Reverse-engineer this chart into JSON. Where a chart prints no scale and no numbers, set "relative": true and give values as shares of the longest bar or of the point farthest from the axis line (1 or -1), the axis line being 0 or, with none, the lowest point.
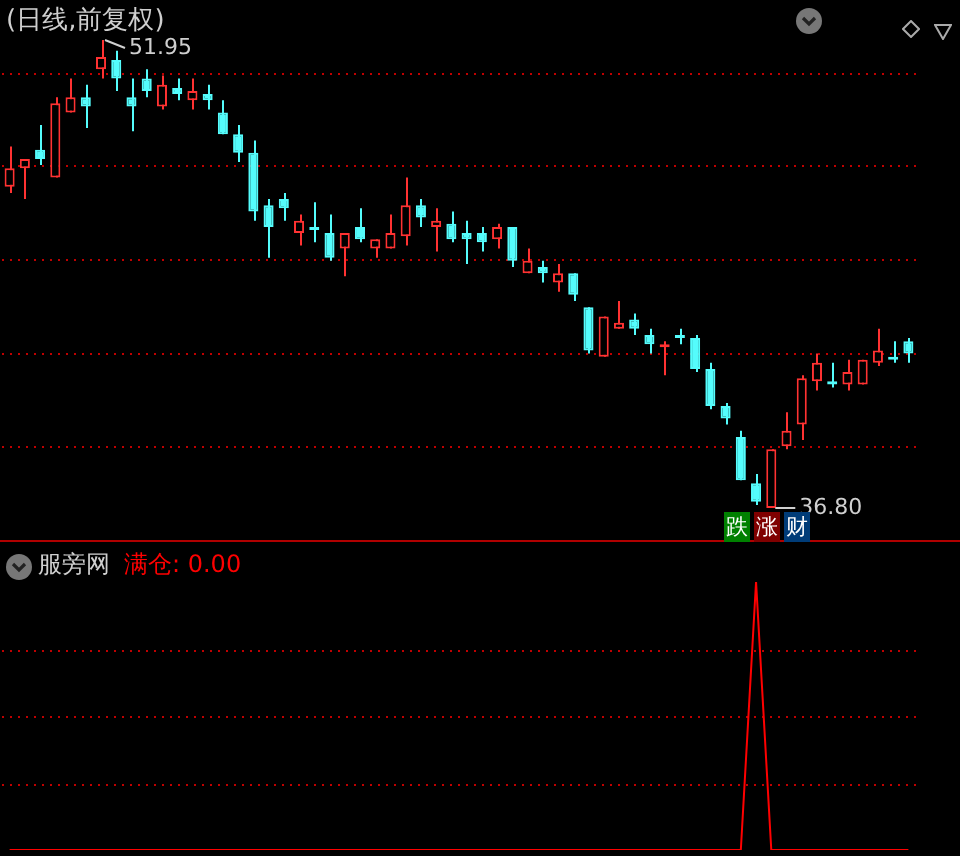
{
  "chart_data": [
    {
      "type": "candlestick",
      "title": "(日线,前复权)",
      "categories": [
        null,
        null,
        null,
        null,
        null,
        null,
        null,
        null,
        null,
        null,
        null,
        null,
        null,
        null,
        null,
        null,
        null,
        null,
        null,
        null,
        null,
        null,
        null,
        null,
        null,
        null,
        null,
        null,
        null,
        null,
        null,
        null,
        null,
        null,
        null,
        null,
        null,
        null,
        null,
        null,
        null,
        null,
        null,
        null,
        null,
        null,
        null,
        null,
        null,
        null,
        null,
        null,
        null,
        null,
        null,
        null,
        null,
        null,
        null,
        null
      ],
      "ohlc": [
        [
          47.2,
          48.5,
          47.0,
          47.8
        ],
        [
          47.8,
          48.1,
          46.8,
          48.1
        ],
        [
          48.4,
          49.2,
          47.9,
          48.1
        ],
        [
          47.5,
          50.1,
          47.5,
          49.9
        ],
        [
          49.6,
          50.7,
          49.6,
          50.1
        ],
        [
          50.1,
          50.5,
          49.1,
          49.8
        ],
        [
          51.0,
          51.95,
          50.7,
          51.4
        ],
        [
          51.3,
          51.6,
          50.3,
          50.7
        ],
        [
          50.1,
          50.7,
          49.0,
          49.8
        ],
        [
          50.7,
          51.0,
          50.1,
          50.3
        ],
        [
          49.8,
          50.8,
          49.7,
          50.5
        ],
        [
          50.4,
          50.7,
          50.0,
          50.2
        ],
        [
          50.0,
          50.7,
          49.7,
          50.3
        ],
        [
          50.2,
          50.5,
          49.7,
          50.0
        ],
        [
          49.6,
          50.0,
          48.9,
          48.9
        ],
        [
          48.9,
          49.2,
          48.0,
          48.3
        ],
        [
          48.3,
          48.7,
          46.1,
          46.4
        ],
        [
          46.6,
          46.8,
          44.9,
          45.9
        ],
        [
          46.8,
          47.0,
          46.1,
          46.5
        ],
        [
          45.7,
          46.3,
          45.3,
          46.1
        ],
        [
          45.9,
          46.7,
          45.4,
          45.8
        ],
        [
          45.7,
          46.3,
          44.8,
          44.9
        ],
        [
          45.2,
          45.7,
          44.3,
          45.7
        ],
        [
          45.9,
          46.5,
          45.4,
          45.5
        ],
        [
          45.2,
          45.5,
          44.9,
          45.5
        ],
        [
          45.2,
          46.3,
          45.2,
          45.7
        ],
        [
          45.6,
          47.5,
          45.3,
          46.6
        ],
        [
          46.6,
          46.8,
          45.9,
          46.2
        ],
        [
          45.9,
          46.5,
          45.1,
          46.1
        ],
        [
          46.0,
          46.4,
          45.4,
          45.5
        ],
        [
          45.7,
          46.1,
          44.7,
          45.5
        ],
        [
          45.7,
          45.9,
          45.1,
          45.4
        ],
        [
          45.5,
          46.0,
          45.2,
          45.9
        ],
        [
          45.9,
          45.9,
          44.6,
          44.8
        ],
        [
          44.4,
          45.2,
          44.4,
          44.8
        ],
        [
          44.6,
          44.8,
          44.1,
          44.4
        ],
        [
          44.1,
          44.7,
          43.8,
          44.4
        ],
        [
          44.4,
          44.4,
          43.5,
          43.7
        ],
        [
          43.3,
          43.3,
          41.8,
          41.9
        ],
        [
          41.7,
          43.0,
          41.7,
          43.0
        ],
        [
          42.6,
          43.5,
          42.6,
          42.8
        ],
        [
          42.9,
          43.1,
          42.4,
          42.6
        ],
        [
          42.4,
          42.6,
          41.8,
          42.1
        ],
        [
          42.0,
          42.2,
          41.1,
          42.1
        ],
        [
          42.4,
          42.6,
          42.1,
          42.3
        ],
        [
          42.3,
          42.4,
          41.2,
          41.3
        ],
        [
          41.3,
          41.5,
          40.0,
          40.1
        ],
        [
          40.1,
          40.2,
          39.5,
          39.7
        ],
        [
          39.1,
          39.3,
          37.7,
          37.7
        ],
        [
          37.6,
          37.9,
          36.9,
          37.0
        ],
        [
          36.8,
          38.7,
          36.8,
          38.7
        ],
        [
          38.8,
          39.9,
          38.7,
          39.3
        ],
        [
          39.5,
          41.1,
          39.0,
          41.0
        ],
        [
          40.9,
          41.8,
          40.6,
          41.5
        ],
        [
          40.9,
          41.5,
          40.7,
          40.8
        ],
        [
          40.8,
          41.6,
          40.6,
          41.2
        ],
        [
          40.8,
          41.6,
          40.8,
          41.6
        ],
        [
          41.5,
          42.6,
          41.4,
          41.9
        ],
        [
          41.7,
          42.2,
          41.5,
          41.6
        ],
        [
          42.2,
          42.3,
          41.5,
          41.8
        ]
      ],
      "colors": [
        "#ff3232",
        "#ff3232",
        "#54fcfc",
        "#ff3232",
        "#ff3232",
        "#54fcfc",
        "#ff3232",
        "#54fcfc",
        "#54fcfc",
        "#54fcfc",
        "#ff3232",
        "#54fcfc",
        "#ff3232",
        "#54fcfc",
        "#54fcfc",
        "#54fcfc",
        "#54fcfc",
        "#54fcfc",
        "#54fcfc",
        "#ff3232",
        "#54fcfc",
        "#54fcfc",
        "#ff3232",
        "#54fcfc",
        "#ff3232",
        "#ff3232",
        "#ff3232",
        "#54fcfc",
        "#ff3232",
        "#54fcfc",
        "#54fcfc",
        "#54fcfc",
        "#ff3232",
        "#54fcfc",
        "#ff3232",
        "#54fcfc",
        "#ff3232",
        "#54fcfc",
        "#54fcfc",
        "#ff3232",
        "#ff3232",
        "#54fcfc",
        "#54fcfc",
        "#ff3232",
        "#54fcfc",
        "#54fcfc",
        "#54fcfc",
        "#54fcfc",
        "#54fcfc",
        "#54fcfc",
        "#ff3232",
        "#ff3232",
        "#ff3232",
        "#ff3232",
        "#54fcfc",
        "#ff3232",
        "#ff3232",
        "#ff3232",
        "#54fcfc",
        "#54fcfc"
      ],
      "yticks": [
        {
          "value": 50.85,
          "label": null
        },
        {
          "value": 47.88,
          "label": null
        },
        {
          "value": 44.84,
          "label": null
        },
        {
          "value": 41.8,
          "label": null
        },
        {
          "value": 38.76,
          "label": null
        }
      ],
      "grid": "y",
      "tick_labels": false,
      "annotations": [
        "51.95",
        "36.80",
        "跌",
        "涨",
        "财"
      ]
    },
    {
      "type": "line",
      "title": "服旁网",
      "relative": true,
      "tick_labels": false,
      "annotations": [
        "0.00"
      ],
      "ref_lines": [
        {
          "axis": "y",
          "value": 0.75,
          "color": "#c00000",
          "line_style": "dotted"
        },
        {
          "axis": "y",
          "value": 0.5,
          "color": "#c00000",
          "line_style": "dotted"
        },
        {
          "axis": "y",
          "value": 0.25,
          "color": "#c00000",
          "line_style": "dotted"
        }
      ],
      "marker": "none",
      "line_style": "solid",
      "categories": [
        null,
        null,
        null,
        null,
        null,
        null,
        null,
        null,
        null,
        null,
        null,
        null,
        null,
        null,
        null,
        null,
        null,
        null,
        null,
        null,
        null,
        null,
        null,
        null,
        null,
        null,
        null,
        null,
        null,
        null,
        null,
        null,
        null,
        null,
        null,
        null,
        null,
        null,
        null,
        null,
        null,
        null,
        null,
        null,
        null,
        null,
        null,
        null,
        null,
        null,
        null,
        null,
        null,
        null,
        null,
        null,
        null,
        null,
        null,
        null
      ],
      "series": [
        {
          "name": "满仓:",
          "color": "#ff0000",
          "values": [
            0,
            0,
            0,
            0,
            0,
            0,
            0,
            0,
            0,
            0,
            0,
            0,
            0,
            0,
            0,
            0,
            0,
            0,
            0,
            0,
            0,
            0,
            0,
            0,
            0,
            0,
            0,
            0,
            0,
            0,
            0,
            0,
            0,
            0,
            0,
            0,
            0,
            0,
            0,
            0,
            0,
            0,
            0,
            0,
            0,
            0,
            0,
            0,
            0,
            1,
            0,
            0,
            0,
            0,
            0,
            0,
            0,
            0,
            0,
            0
          ]
        }
      ]
    }
  ]
}
